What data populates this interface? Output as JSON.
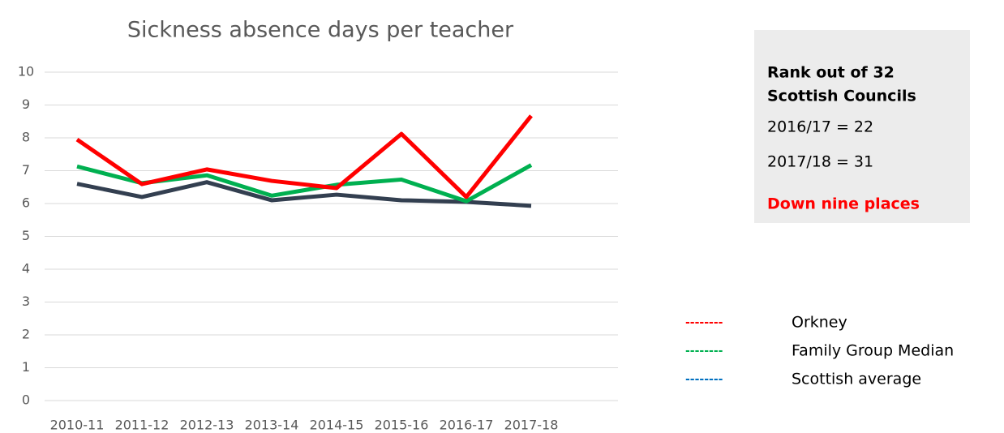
{
  "chart_data": {
    "type": "line",
    "title": "Sickness absence days per teacher",
    "categories": [
      "2010-11",
      "2011-12",
      "2012-13",
      "2013-14",
      "2014-15",
      "2015-16",
      "2016-17",
      "2017-18"
    ],
    "series": [
      {
        "name": "Orkney",
        "color": "#ff0000",
        "legend_marker": "--------",
        "legend_color": "#ff0000",
        "values": [
          7.95,
          6.59,
          7.04,
          6.69,
          6.47,
          8.12,
          6.2,
          8.67
        ]
      },
      {
        "name": "Family Group Median",
        "color": "#00b050",
        "legend_marker": "--------",
        "legend_color": "#00b050",
        "values": [
          7.13,
          6.62,
          6.86,
          6.24,
          6.57,
          6.73,
          6.07,
          7.17
        ]
      },
      {
        "name": "Scottish average",
        "color": "#333f50",
        "legend_marker": "--------",
        "legend_color": "#0070c0",
        "values": [
          6.6,
          6.2,
          6.65,
          6.1,
          6.27,
          6.1,
          6.05,
          5.93
        ]
      }
    ],
    "ylim": [
      0,
      10
    ],
    "yticks": [
      0,
      1,
      2,
      3,
      4,
      5,
      6,
      7,
      8,
      9,
      10
    ],
    "grid": true
  },
  "info_box": {
    "heading": [
      "Rank out of 32",
      "Scottish Councils"
    ],
    "lines": [
      "2016/17 = 22",
      "2017/18 = 31"
    ],
    "highlight": "Down nine places"
  }
}
